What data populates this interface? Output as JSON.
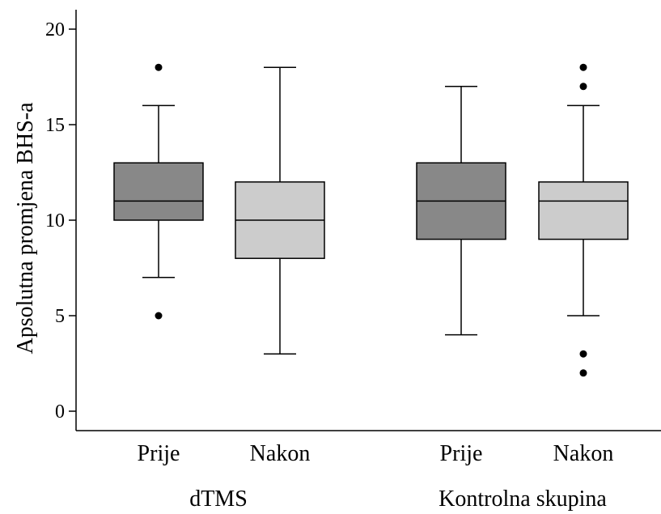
{
  "chart_data": {
    "type": "box",
    "ylabel": "Apsolutna promjena BHS-a",
    "ylim": [
      0,
      20
    ],
    "yticks": [
      0,
      5,
      10,
      15,
      20
    ],
    "grid": false,
    "groups": [
      {
        "label": "dTMS",
        "boxes": [
          {
            "label": "Prije",
            "fill": "#888888",
            "whisker_low": 7,
            "q1": 10,
            "median": 11,
            "q3": 13,
            "whisker_high": 16,
            "outliers": [
              5,
              18
            ]
          },
          {
            "label": "Nakon",
            "fill": "#cccccc",
            "whisker_low": 3,
            "q1": 8,
            "median": 10,
            "q3": 12,
            "whisker_high": 18,
            "outliers": []
          }
        ]
      },
      {
        "label": "Kontrolna skupina",
        "boxes": [
          {
            "label": "Prije",
            "fill": "#888888",
            "whisker_low": 4,
            "q1": 9,
            "median": 11,
            "q3": 13,
            "whisker_high": 17,
            "outliers": []
          },
          {
            "label": "Nakon",
            "fill": "#cccccc",
            "whisker_low": 5,
            "q1": 9,
            "median": 11,
            "q3": 12,
            "whisker_high": 16,
            "outliers": [
              2,
              3,
              17,
              18
            ]
          }
        ]
      }
    ]
  }
}
